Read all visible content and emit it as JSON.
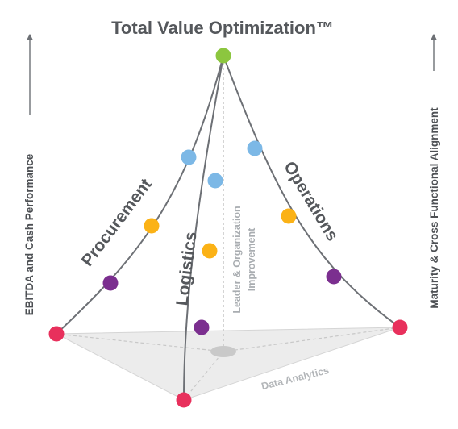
{
  "title": "Total Value Optimization™",
  "edges": {
    "procurement": "Procurement",
    "logistics": "Logistics",
    "operations": "Operations"
  },
  "center_axis": {
    "line1": "Leader & Organization",
    "line2": "Improvement"
  },
  "base": "Data Analytics",
  "left_axis": "EBITDA and Cash Performance",
  "right_axis": "Maturity & Cross Functional Alignment",
  "colors": {
    "apex": "#8cc63f",
    "level1": "#7cb8e6",
    "level2": "#fbb216",
    "level3": "#7b2f8f",
    "base": "#e8305c",
    "edge": "#6d7075",
    "text": "#55585c"
  }
}
